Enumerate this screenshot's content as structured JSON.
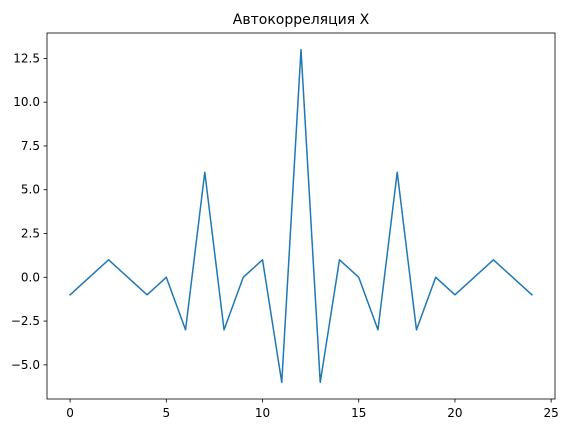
{
  "chart_data": {
    "type": "line",
    "title": "Автокорреляция X",
    "xlabel": "",
    "ylabel": "",
    "xlim": [
      -1.2,
      25.2
    ],
    "ylim": [
      -6.95,
      13.95
    ],
    "xticks": [
      0,
      5,
      10,
      15,
      20,
      25
    ],
    "xtick_labels": [
      "0",
      "5",
      "10",
      "15",
      "20",
      "25"
    ],
    "yticks": [
      -5.0,
      -2.5,
      0.0,
      2.5,
      5.0,
      7.5,
      10.0,
      12.5
    ],
    "ytick_labels": [
      "−5.0",
      "−2.5",
      "0.0",
      "2.5",
      "5.0",
      "7.5",
      "10.0",
      "12.5"
    ],
    "grid": false,
    "series": [
      {
        "color": "#1f77b4",
        "x": [
          0,
          1,
          2,
          3,
          4,
          5,
          6,
          7,
          8,
          9,
          10,
          11,
          12,
          13,
          14,
          15,
          16,
          17,
          18,
          19,
          20,
          21,
          22,
          23,
          24
        ],
        "values": [
          -1,
          0,
          1,
          0,
          -1,
          0,
          -3,
          6,
          -3,
          0,
          1,
          -6,
          13,
          -6,
          1,
          0,
          -3,
          6,
          -3,
          0,
          -1,
          0,
          1,
          0,
          -1
        ]
      }
    ]
  }
}
